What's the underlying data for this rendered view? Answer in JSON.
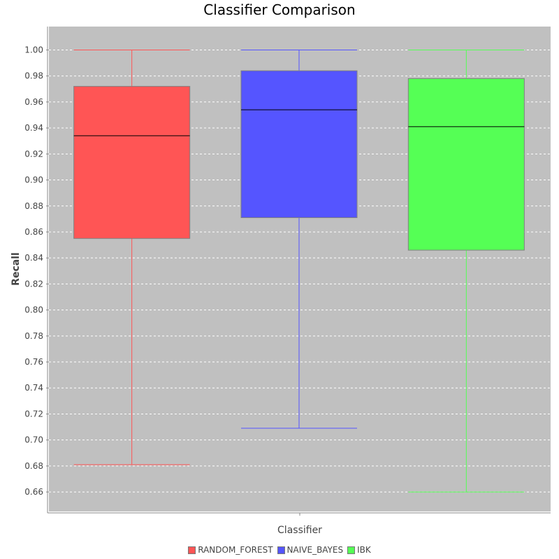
{
  "chart_data": {
    "type": "box",
    "title": "Classifier Comparison",
    "xlabel": "Classifier",
    "ylabel": "Recall",
    "ylim": [
      0.645,
      1.018
    ],
    "y_ticks": [
      "0.66",
      "0.68",
      "0.70",
      "0.72",
      "0.74",
      "0.76",
      "0.78",
      "0.80",
      "0.82",
      "0.84",
      "0.86",
      "0.88",
      "0.90",
      "0.92",
      "0.94",
      "0.96",
      "0.98",
      "1.00"
    ],
    "grid": true,
    "legend_position": "bottom",
    "series": [
      {
        "name": "RANDOM_FOREST",
        "color": "#ff5555",
        "min": 0.681,
        "q1": 0.855,
        "median": 0.934,
        "q3": 0.972,
        "max": 1.0
      },
      {
        "name": "NAIVE_BAYES",
        "color": "#5555ff",
        "min": 0.709,
        "q1": 0.871,
        "median": 0.954,
        "q3": 0.984,
        "max": 1.0
      },
      {
        "name": "IBK",
        "color": "#55ff55",
        "min": 0.66,
        "q1": 0.846,
        "median": 0.941,
        "q3": 0.978,
        "max": 1.0
      }
    ]
  }
}
